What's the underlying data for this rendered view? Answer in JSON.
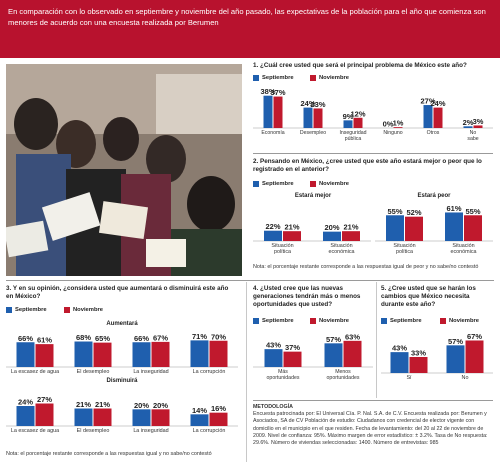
{
  "header": {
    "text": "En comparación con lo observado en septiembre y noviembre del año pasado, las expectativas de la población para el año que comienza son menores de acuerdo con una encuesta realizada por Berumen"
  },
  "legend": {
    "sep": "Septiembre",
    "nov": "Noviembre"
  },
  "colors": {
    "sep": "#1f5fae",
    "nov": "#c0192d",
    "header": "#b8122e"
  },
  "q1": {
    "title": "1. ¿Cuál cree usted que será el principal problema de México este año?"
  },
  "q2": {
    "title": "2. Pensando en México, ¿cree usted que este año estará mejor o peor que lo registrado en el anterior?",
    "sub_mejor": "Estará mejor",
    "sub_peor": "Estará peor",
    "note": "Nota: el porcentaje restante corresponde a las respuestas igual de peor y no sabe/no contestó"
  },
  "q3": {
    "title": "3. Y en su opinión, ¿considera usted que aumentará o disminuirá este año en México?",
    "sub_aum": "Aumentará",
    "sub_dis": "Disminuirá",
    "note": "Nota: el porcentaje restante corresponde a las respuestas igual y no sabe/no contestó"
  },
  "q4": {
    "title": "4. ¿Usted cree que las nuevas generaciones tendrán más o menos oportunidades que usted?"
  },
  "q5": {
    "title": "5. ¿Cree usted que se harán los cambios que México necesita durante este año?"
  },
  "methodology": {
    "title": "METODOLOGÍA",
    "text": "Encuesta patrocinada por: El Universal Cía. P. Nal. S.A. de C.V. Encuesta realizada por: Berumen y Asociados, SA de CV Población de estudio: Ciudadanos con credencial de elector vigente con domicilio en el municipio en el que residen. Fecha de levantamiento: del 20 al 22 de noviembre de 2009. Nivel de confianza: 95%. Máximo margen de error estadístico: ± 3.2%. Tasa de No respuesta: 29.6%. Número de viviendas seleccionadas: 1400. Número de entrevistas: 985"
  },
  "chart_data": [
    {
      "id": "q1",
      "type": "bar",
      "categories": [
        "Economía",
        "Desempleo",
        "Inseguridad pública",
        "Ninguno",
        "Otros",
        "No sabe"
      ],
      "series": [
        {
          "name": "Septiembre",
          "values": [
            38,
            24,
            9,
            0,
            27,
            2
          ]
        },
        {
          "name": "Noviembre",
          "values": [
            37,
            23,
            12,
            1,
            24,
            3
          ]
        }
      ],
      "ylim": [
        0,
        40
      ]
    },
    {
      "id": "q2-mejor",
      "type": "bar",
      "subtitle": "Estará mejor",
      "categories": [
        "Situación política",
        "Situación económica"
      ],
      "series": [
        {
          "name": "Septiembre",
          "values": [
            22,
            20
          ]
        },
        {
          "name": "Noviembre",
          "values": [
            21,
            21
          ]
        }
      ],
      "ylim": [
        0,
        62
      ]
    },
    {
      "id": "q2-peor",
      "type": "bar",
      "subtitle": "Estará peor",
      "categories": [
        "Situación política",
        "Situación económica"
      ],
      "series": [
        {
          "name": "Septiembre",
          "values": [
            55,
            61
          ]
        },
        {
          "name": "Noviembre",
          "values": [
            52,
            55
          ]
        }
      ],
      "ylim": [
        0,
        62
      ]
    },
    {
      "id": "q3-aum",
      "type": "bar",
      "subtitle": "Aumentará",
      "categories": [
        "La escasez de agua",
        "El desempleo",
        "La inseguridad",
        "La corrupción"
      ],
      "series": [
        {
          "name": "Septiembre",
          "values": [
            66,
            68,
            66,
            71
          ]
        },
        {
          "name": "Noviembre",
          "values": [
            61,
            65,
            67,
            70
          ]
        }
      ],
      "ylim": [
        0,
        72
      ]
    },
    {
      "id": "q3-dis",
      "type": "bar",
      "subtitle": "Disminuirá",
      "categories": [
        "La escasez de agua",
        "El desempleo",
        "La inseguridad",
        "La corrupción"
      ],
      "series": [
        {
          "name": "Septiembre",
          "values": [
            24,
            21,
            20,
            14
          ]
        },
        {
          "name": "Noviembre",
          "values": [
            27,
            21,
            20,
            16
          ]
        }
      ],
      "ylim": [
        0,
        30
      ]
    },
    {
      "id": "q4",
      "type": "bar",
      "categories": [
        "Más oportunidades",
        "Menos oportunidades"
      ],
      "series": [
        {
          "name": "Septiembre",
          "values": [
            43,
            57
          ]
        },
        {
          "name": "Noviembre",
          "values": [
            37,
            63
          ]
        }
      ],
      "ylim": [
        0,
        65
      ]
    },
    {
      "id": "q5",
      "type": "bar",
      "categories": [
        "Sí",
        "No"
      ],
      "series": [
        {
          "name": "Septiembre",
          "values": [
            43,
            57
          ]
        },
        {
          "name": "Noviembre",
          "values": [
            33,
            67
          ]
        }
      ],
      "ylim": [
        0,
        68
      ]
    }
  ]
}
